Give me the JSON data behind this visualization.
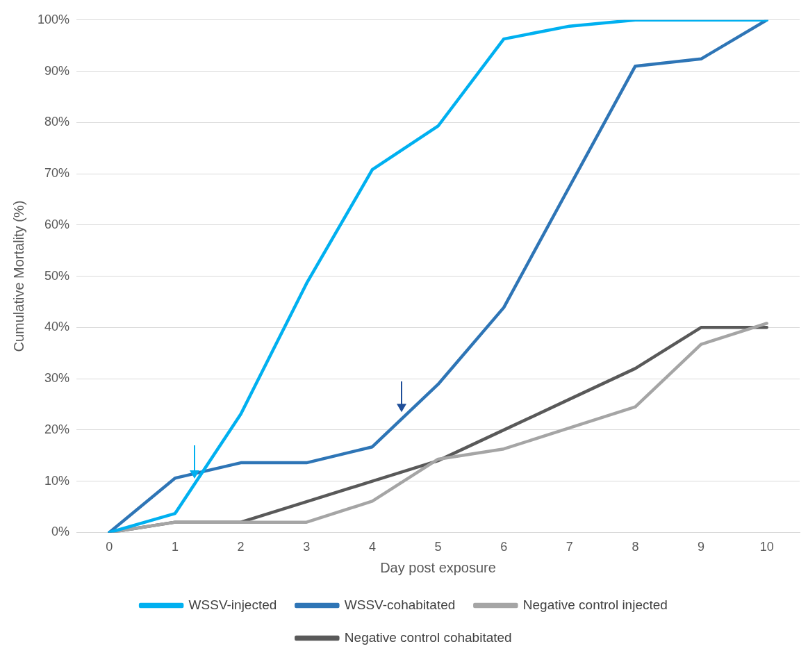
{
  "chart_data": {
    "type": "line",
    "xlabel": "Day post exposure",
    "ylabel": "Cumulative Mortality (%)",
    "categories": [
      "0",
      "1",
      "2",
      "3",
      "4",
      "5",
      "6",
      "7",
      "8",
      "9",
      "10"
    ],
    "series": [
      {
        "name": "WSSV-injected",
        "color": "#00b0f0",
        "values": [
          0,
          3.7,
          23.1,
          48.6,
          70.8,
          79.3,
          96.3,
          98.8,
          100,
          100,
          100
        ]
      },
      {
        "name": "WSSV-cohabitated",
        "color": "#2e75b6",
        "values": [
          0,
          10.6,
          13.6,
          13.6,
          16.7,
          28.9,
          43.9,
          67.5,
          91,
          92.4,
          100
        ]
      },
      {
        "name": "Negative control injected",
        "color": "#a5a5a5",
        "values": [
          0,
          2,
          2,
          2,
          6.1,
          14.3,
          16.3,
          20.4,
          24.5,
          36.7,
          40.8
        ]
      },
      {
        "name": "Negative control cohabitated",
        "color": "#595959",
        "values": [
          0,
          2,
          2,
          6,
          10,
          14,
          20,
          26,
          32,
          40,
          40
        ]
      }
    ],
    "ylim": [
      0,
      100
    ],
    "yticks": [
      {
        "value": 0,
        "label": "0%"
      },
      {
        "value": 10,
        "label": "10%"
      },
      {
        "value": 20,
        "label": "20%"
      },
      {
        "value": 30,
        "label": "30%"
      },
      {
        "value": 40,
        "label": "40%"
      },
      {
        "value": 50,
        "label": "50%"
      },
      {
        "value": 60,
        "label": "60%"
      },
      {
        "value": 70,
        "label": "70%"
      },
      {
        "value": 80,
        "label": "80%"
      },
      {
        "value": 90,
        "label": "90%"
      },
      {
        "value": 100,
        "label": "100%"
      }
    ],
    "grid": "y",
    "legend": "bottom",
    "marker": "none",
    "line_style": "solid"
  }
}
